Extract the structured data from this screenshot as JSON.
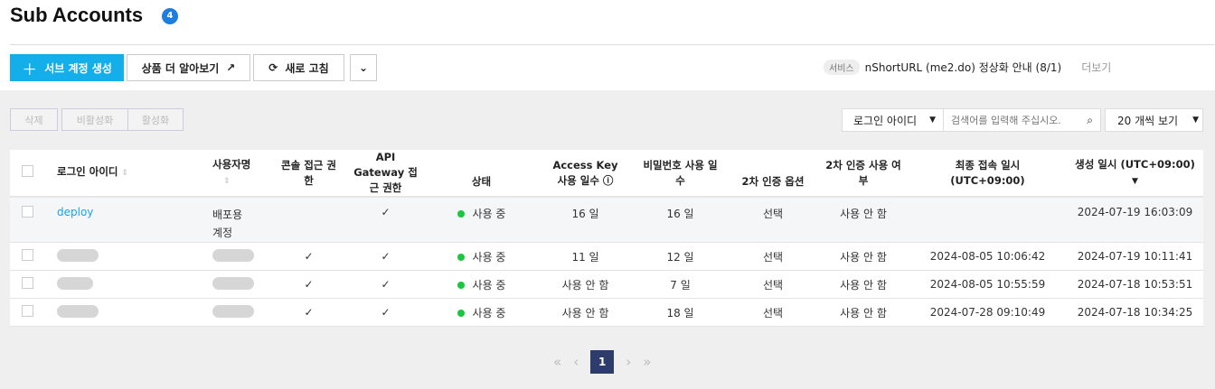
{
  "header": {
    "title": "Sub Accounts",
    "count": "4"
  },
  "toolbar": {
    "create": "서브 계정 생성",
    "learn_more": "상품 더 알아보기",
    "refresh": "새로 고침"
  },
  "notice": {
    "tag": "서비스",
    "text": "nShortURL (me2.do) 정상화 안내 (8/1)",
    "more": "더보기"
  },
  "actions": {
    "delete": "삭제",
    "deactivate": "비활성화",
    "activate": "활성화"
  },
  "filter": {
    "field": "로그인 아이디",
    "placeholder": "검색어를 입력해 주십시오.",
    "page_size": "20 개씩 보기"
  },
  "table": {
    "columns": [
      "로그인 아이디",
      "사용자명",
      "콘솔 접근 권한",
      "API Gateway 접근 권한",
      "상태",
      "Access Key 사용 일수",
      "비밀번호 사용 일수",
      "2차 인증 옵션",
      "2차 인증 사용 여부",
      "최종 접속 일시 (UTC+09:00)",
      "생성 일시 (UTC+09:00)"
    ],
    "rows": [
      {
        "login": "deploy",
        "user": "배포용 계정",
        "console": "",
        "api": "✓",
        "status": "사용 중",
        "ak": "16 일",
        "pw": "16 일",
        "opt": "선택",
        "mfa": "사용 안 함",
        "last": "",
        "created": "2024-07-19 16:03:09"
      },
      {
        "login": "",
        "user": "",
        "console": "✓",
        "api": "✓",
        "status": "사용 중",
        "ak": "11 일",
        "pw": "12 일",
        "opt": "선택",
        "mfa": "사용 안 함",
        "last": "2024-08-05 10:06:42",
        "created": "2024-07-19 10:11:41"
      },
      {
        "login": "",
        "user": "",
        "console": "✓",
        "api": "✓",
        "status": "사용 중",
        "ak": "사용 안 함",
        "pw": "7 일",
        "opt": "선택",
        "mfa": "사용 안 함",
        "last": "2024-08-05 10:55:59",
        "created": "2024-07-18 10:53:51"
      },
      {
        "login": "",
        "user": "",
        "console": "✓",
        "api": "✓",
        "status": "사용 중",
        "ak": "사용 안 함",
        "pw": "18 일",
        "opt": "선택",
        "mfa": "사용 안 함",
        "last": "2024-07-28 09:10:49",
        "created": "2024-07-18 10:34:25"
      }
    ]
  },
  "pagination": {
    "current": "1"
  },
  "colors": {
    "primary": "#14aeea",
    "status_active": "#1bc640",
    "page_active": "#2d3c6b"
  }
}
